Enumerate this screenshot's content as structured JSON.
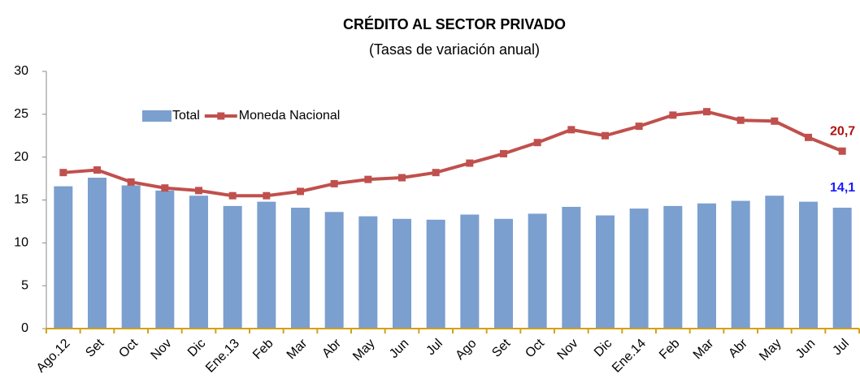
{
  "chart_data": {
    "type": "bar",
    "title": "CRÉDITO AL SECTOR PRIVADO",
    "subtitle": "(Tasas de variación anual)",
    "categories": [
      "Ago.12",
      "Set",
      "Oct",
      "Nov",
      "Dic",
      "Ene.13",
      "Feb",
      "Mar",
      "Abr",
      "May",
      "Jun",
      "Jul",
      "Ago",
      "Set",
      "Oct",
      "Nov",
      "Dic",
      "Ene.14",
      "Feb",
      "Mar",
      "Abr",
      "May",
      "Jun",
      "Jul"
    ],
    "series": [
      {
        "name": "Total",
        "type": "bar",
        "color": "#7b9fcf",
        "label_color": "#1a1aff",
        "values": [
          16.6,
          17.6,
          16.7,
          16.1,
          15.5,
          14.3,
          14.8,
          14.1,
          13.6,
          13.1,
          12.8,
          12.7,
          13.3,
          12.8,
          13.4,
          14.2,
          13.2,
          14.0,
          14.3,
          14.6,
          14.9,
          15.5,
          14.8,
          14.1
        ],
        "value_labels": [
          null,
          null,
          null,
          null,
          null,
          null,
          null,
          null,
          null,
          null,
          null,
          null,
          null,
          null,
          null,
          null,
          null,
          null,
          null,
          null,
          null,
          null,
          null,
          "14,1"
        ]
      },
      {
        "name": "Moneda Nacional",
        "type": "line",
        "color": "#c0504d",
        "label_color": "#b01010",
        "values": [
          18.2,
          18.5,
          17.1,
          16.4,
          16.1,
          15.5,
          15.5,
          16.0,
          16.9,
          17.4,
          17.6,
          18.2,
          19.3,
          20.4,
          21.7,
          23.2,
          22.5,
          23.6,
          24.9,
          25.3,
          24.3,
          24.2,
          22.3,
          20.7
        ],
        "value_labels": [
          null,
          null,
          null,
          null,
          null,
          null,
          null,
          null,
          null,
          null,
          null,
          null,
          null,
          null,
          null,
          null,
          null,
          null,
          null,
          null,
          null,
          null,
          null,
          "20,7"
        ]
      }
    ],
    "ylim": [
      0,
      30
    ],
    "yticks": [
      0,
      5,
      10,
      15,
      20,
      25,
      30
    ],
    "grid": false,
    "legend": "top-left"
  }
}
